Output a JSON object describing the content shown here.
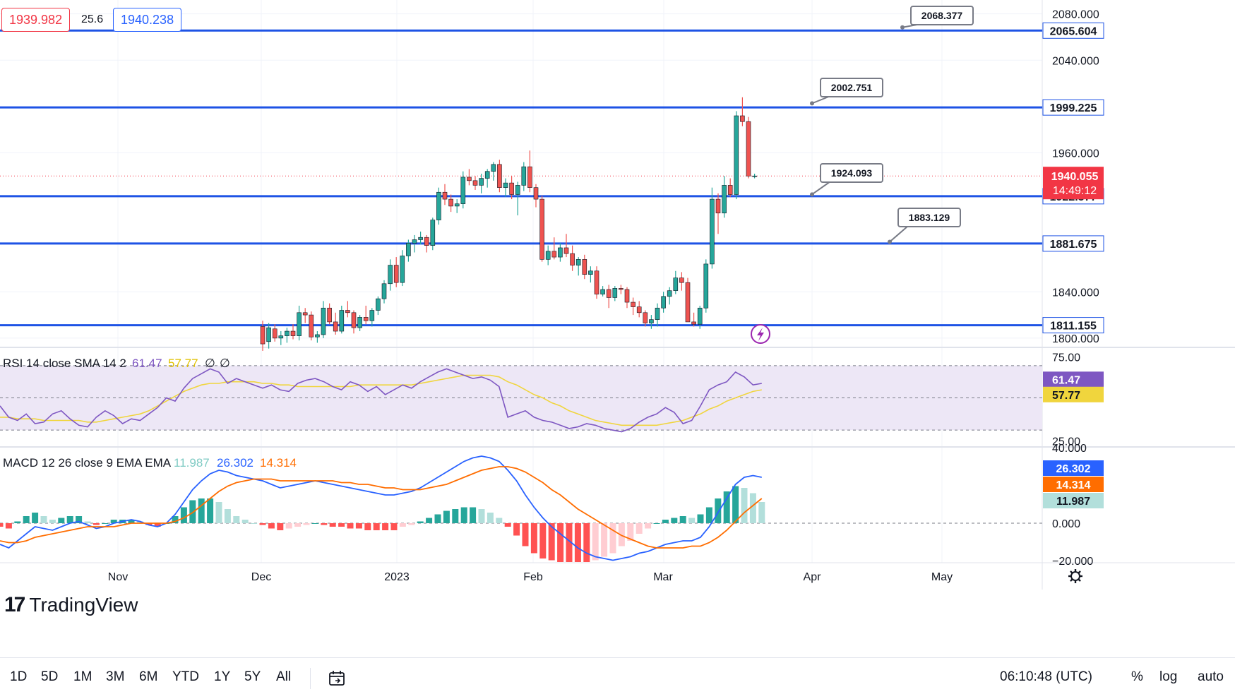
{
  "header": {
    "bid": "1939.982",
    "spread": "25.6",
    "ask": "1940.238",
    "bid_color": "#f23645",
    "ask_color": "#2962ff"
  },
  "chart_data": {
    "type": "candlestick",
    "price_axis": {
      "ticks": [
        "2080.000",
        "2040.000",
        "1960.000",
        "1840.000",
        "1800.000"
      ],
      "range": [
        1792,
        2092
      ]
    },
    "time_axis": {
      "labels": [
        "Nov",
        "Dec",
        "2023",
        "Feb",
        "Mar",
        "Apr",
        "May"
      ]
    },
    "horizontal_levels": [
      {
        "price": 2065.604,
        "label": "2065.604"
      },
      {
        "price": 1999.225,
        "label": "1999.225"
      },
      {
        "price": 1922.577,
        "label": "1922.577"
      },
      {
        "price": 1881.675,
        "label": "1881.675"
      },
      {
        "price": 1811.155,
        "label": "1811.155"
      }
    ],
    "callouts": [
      {
        "label": "2068.377",
        "price": 2068.377
      },
      {
        "label": "2002.751",
        "price": 2002.751
      },
      {
        "label": "1924.093",
        "price": 1924.093
      },
      {
        "label": "1883.129",
        "price": 1883.129
      }
    ],
    "current_price": {
      "label": "1940.055",
      "countdown": "14:49:12",
      "price": 1940.055,
      "color": "#f23645"
    },
    "candles": [
      [
        1810,
        1815,
        1789,
        1795
      ],
      [
        1797,
        1813,
        1791,
        1809
      ],
      [
        1808,
        1812,
        1797,
        1800
      ],
      [
        1800,
        1806,
        1794,
        1802
      ],
      [
        1802,
        1809,
        1796,
        1806
      ],
      [
        1806,
        1812,
        1799,
        1802
      ],
      [
        1802,
        1828,
        1798,
        1822
      ],
      [
        1822,
        1826,
        1813,
        1820
      ],
      [
        1820,
        1823,
        1798,
        1801
      ],
      [
        1801,
        1806,
        1796,
        1803
      ],
      [
        1803,
        1832,
        1800,
        1826
      ],
      [
        1826,
        1830,
        1812,
        1814
      ],
      [
        1814,
        1822,
        1803,
        1806
      ],
      [
        1806,
        1828,
        1804,
        1824
      ],
      [
        1824,
        1832,
        1818,
        1822
      ],
      [
        1822,
        1824,
        1804,
        1809
      ],
      [
        1809,
        1820,
        1806,
        1818
      ],
      [
        1818,
        1828,
        1812,
        1815
      ],
      [
        1815,
        1826,
        1810,
        1824
      ],
      [
        1824,
        1836,
        1820,
        1834
      ],
      [
        1834,
        1850,
        1830,
        1847
      ],
      [
        1847,
        1868,
        1841,
        1863
      ],
      [
        1863,
        1870,
        1844,
        1848
      ],
      [
        1848,
        1876,
        1845,
        1871
      ],
      [
        1871,
        1885,
        1866,
        1882
      ],
      [
        1882,
        1889,
        1874,
        1885
      ],
      [
        1885,
        1892,
        1881,
        1887
      ],
      [
        1887,
        1889,
        1874,
        1880
      ],
      [
        1880,
        1904,
        1876,
        1902
      ],
      [
        1902,
        1930,
        1898,
        1926
      ],
      [
        1926,
        1933,
        1915,
        1920
      ],
      [
        1920,
        1924,
        1909,
        1914
      ],
      [
        1914,
        1920,
        1908,
        1916
      ],
      [
        1916,
        1944,
        1912,
        1939
      ],
      [
        1939,
        1946,
        1932,
        1936
      ],
      [
        1936,
        1940,
        1928,
        1932
      ],
      [
        1932,
        1942,
        1925,
        1938
      ],
      [
        1938,
        1946,
        1930,
        1944
      ],
      [
        1944,
        1952,
        1936,
        1950
      ],
      [
        1950,
        1954,
        1926,
        1930
      ],
      [
        1930,
        1938,
        1922,
        1934
      ],
      [
        1934,
        1940,
        1920,
        1924
      ],
      [
        1924,
        1935,
        1906,
        1932
      ],
      [
        1932,
        1952,
        1927,
        1948
      ],
      [
        1948,
        1962,
        1926,
        1930
      ],
      [
        1930,
        1933,
        1913,
        1920
      ],
      [
        1920,
        1923,
        1866,
        1868
      ],
      [
        1868,
        1880,
        1863,
        1875
      ],
      [
        1875,
        1887,
        1868,
        1870
      ],
      [
        1870,
        1882,
        1866,
        1878
      ],
      [
        1878,
        1890,
        1870,
        1873
      ],
      [
        1873,
        1880,
        1858,
        1863
      ],
      [
        1863,
        1870,
        1854,
        1868
      ],
      [
        1868,
        1872,
        1851,
        1855
      ],
      [
        1855,
        1862,
        1848,
        1858
      ],
      [
        1858,
        1862,
        1834,
        1838
      ],
      [
        1838,
        1845,
        1836,
        1842
      ],
      [
        1842,
        1846,
        1826,
        1835
      ],
      [
        1835,
        1845,
        1832,
        1843
      ],
      [
        1843,
        1846,
        1838,
        1842
      ],
      [
        1842,
        1844,
        1826,
        1831
      ],
      [
        1831,
        1835,
        1820,
        1827
      ],
      [
        1827,
        1832,
        1818,
        1822
      ],
      [
        1822,
        1824,
        1810,
        1813
      ],
      [
        1813,
        1820,
        1808,
        1816
      ],
      [
        1816,
        1830,
        1810,
        1826
      ],
      [
        1826,
        1840,
        1822,
        1836
      ],
      [
        1836,
        1844,
        1829,
        1841
      ],
      [
        1841,
        1858,
        1838,
        1852
      ],
      [
        1852,
        1857,
        1841,
        1848
      ],
      [
        1848,
        1852,
        1816,
        1814
      ],
      [
        1814,
        1822,
        1810,
        1812
      ],
      [
        1812,
        1828,
        1808,
        1826
      ],
      [
        1826,
        1868,
        1822,
        1864
      ],
      [
        1864,
        1930,
        1860,
        1920
      ],
      [
        1920,
        1925,
        1890,
        1908
      ],
      [
        1908,
        1940,
        1904,
        1932
      ],
      [
        1932,
        1938,
        1922,
        1924
      ],
      [
        1924,
        1996,
        1920,
        1992
      ],
      [
        1992,
        2008,
        1983,
        1987
      ],
      [
        1987,
        1991,
        1938,
        1940
      ],
      [
        1940,
        1942,
        1938,
        1940.055
      ]
    ]
  },
  "rsi": {
    "label": "RSI 14 close SMA 14 2",
    "rsi_value": "61.47",
    "sma_value": "57.77",
    "extra1": "∅",
    "extra2": "∅",
    "axis_top": "75.00",
    "axis_bottom": "25.00",
    "rsi_color": "#7e57c2",
    "sma_color": "#f0d53d",
    "range": [
      20,
      80
    ],
    "rsi_points": [
      45,
      38,
      36,
      40,
      34,
      35,
      40,
      42,
      37,
      33,
      32,
      38,
      42,
      39,
      34,
      37,
      36,
      40,
      44,
      50,
      48,
      56,
      62,
      65,
      68,
      66,
      59,
      62,
      60,
      58,
      56,
      58,
      55,
      54,
      59,
      61,
      62,
      60,
      57,
      55,
      60,
      58,
      54,
      57,
      52,
      55,
      58,
      56,
      60,
      63,
      66,
      68,
      66,
      64,
      62,
      63,
      61,
      57,
      38,
      40,
      42,
      38,
      36,
      35,
      33,
      31,
      32,
      34,
      33,
      31,
      30,
      29,
      31,
      35,
      38,
      40,
      44,
      41,
      34,
      36,
      45,
      55,
      58,
      60,
      66,
      63,
      58,
      59
    ],
    "sma_points": [
      38,
      38,
      37,
      37,
      37,
      36,
      36,
      36,
      36,
      36,
      35,
      35,
      36,
      37,
      38,
      39,
      40,
      42,
      45,
      48,
      51,
      54,
      56,
      58,
      59,
      59,
      60,
      60,
      60,
      60,
      59,
      59,
      58,
      58,
      57,
      57,
      57,
      57,
      57,
      57,
      57,
      58,
      58,
      58,
      58,
      58,
      58,
      58,
      59,
      60,
      61,
      62,
      63,
      64,
      64,
      64,
      64,
      63,
      60,
      58,
      55,
      52,
      50,
      47,
      45,
      42,
      40,
      38,
      36,
      35,
      34,
      33,
      33,
      33,
      33,
      33,
      34,
      35,
      36,
      38,
      40,
      43,
      45,
      48,
      50,
      52,
      54,
      55
    ]
  },
  "macd": {
    "label": "MACD 12 26 close 9 EMA EMA",
    "hist_value": "11.987",
    "macd_value": "26.302",
    "signal_value": "14.314",
    "axis_top": "40.000",
    "axis_zero": "0.000",
    "axis_bottom": "−20.000",
    "macd_color": "#2962ff",
    "signal_color": "#ff6d00",
    "hist_color": "#b2dfdb",
    "range": [
      -22,
      42
    ],
    "macd_points": [
      -12,
      -14,
      -10,
      -6,
      -2,
      -3,
      -4,
      -2,
      0,
      1,
      -1,
      -3,
      -2,
      0,
      1,
      2,
      1,
      -1,
      -2,
      0,
      5,
      12,
      19,
      24,
      28,
      30,
      29,
      27,
      26,
      25,
      24,
      22,
      20,
      21,
      22,
      23,
      24,
      23,
      22,
      21,
      20,
      19,
      18,
      17,
      16,
      16,
      17,
      18,
      20,
      23,
      26,
      29,
      32,
      35,
      37,
      38,
      37,
      35,
      30,
      24,
      16,
      9,
      3,
      -2,
      -6,
      -10,
      -14,
      -17,
      -19,
      -20,
      -21,
      -20,
      -19,
      -17,
      -16,
      -14,
      -12,
      -11,
      -10,
      -10,
      -8,
      -2,
      6,
      14,
      22,
      26,
      27,
      26
    ],
    "signal_points": [
      -10,
      -11,
      -11,
      -10,
      -8,
      -7,
      -6,
      -5,
      -4,
      -3,
      -2,
      -2,
      -2,
      -2,
      -1,
      0,
      0,
      0,
      0,
      0,
      1,
      3,
      6,
      10,
      14,
      18,
      21,
      23,
      24,
      25,
      25,
      25,
      24,
      24,
      24,
      24,
      24,
      24,
      24,
      23,
      23,
      22,
      22,
      21,
      20,
      20,
      19,
      19,
      19,
      20,
      21,
      22,
      24,
      26,
      28,
      30,
      31,
      32,
      32,
      31,
      29,
      26,
      23,
      19,
      16,
      12,
      8,
      5,
      2,
      -1,
      -4,
      -7,
      -9,
      -11,
      -13,
      -14,
      -14,
      -14,
      -14,
      -13,
      -13,
      -11,
      -8,
      -4,
      1,
      6,
      10,
      14
    ],
    "hist_points": [
      -2,
      -3,
      1,
      4,
      6,
      4,
      2,
      3,
      4,
      4,
      1,
      -1,
      0,
      2,
      2,
      2,
      1,
      -1,
      -2,
      0,
      4,
      9,
      13,
      14,
      14,
      12,
      8,
      4,
      2,
      0,
      -1,
      -3,
      -4,
      -3,
      -2,
      -1,
      0,
      -1,
      -2,
      -2,
      -3,
      -3,
      -4,
      -4,
      -4,
      -4,
      -2,
      -1,
      1,
      3,
      5,
      7,
      8,
      9,
      9,
      8,
      6,
      3,
      -2,
      -7,
      -13,
      -17,
      -20,
      -21,
      -22,
      -22,
      -22,
      -22,
      -21,
      -19,
      -17,
      -13,
      -10,
      -6,
      -3,
      0,
      2,
      3,
      4,
      3,
      5,
      9,
      14,
      18,
      21,
      20,
      17,
      12
    ]
  },
  "toolbar": {
    "timeframes": [
      "1D",
      "5D",
      "1M",
      "3M",
      "6M",
      "YTD",
      "1Y",
      "5Y",
      "All"
    ],
    "clock": "06:10:48 (UTC)",
    "percent": "%",
    "log": "log",
    "auto": "auto",
    "calendar_icon": "calendar-range-icon"
  },
  "branding": {
    "logo_mark": "17",
    "logo_text": "TradingView"
  },
  "settings_icon": "gear-icon",
  "lightning_icon": "lightning-icon",
  "colors": {
    "up": "#26a69a",
    "down": "#ef5350",
    "level_line": "#1e53e5",
    "rsi_band": "#ede7f6"
  }
}
